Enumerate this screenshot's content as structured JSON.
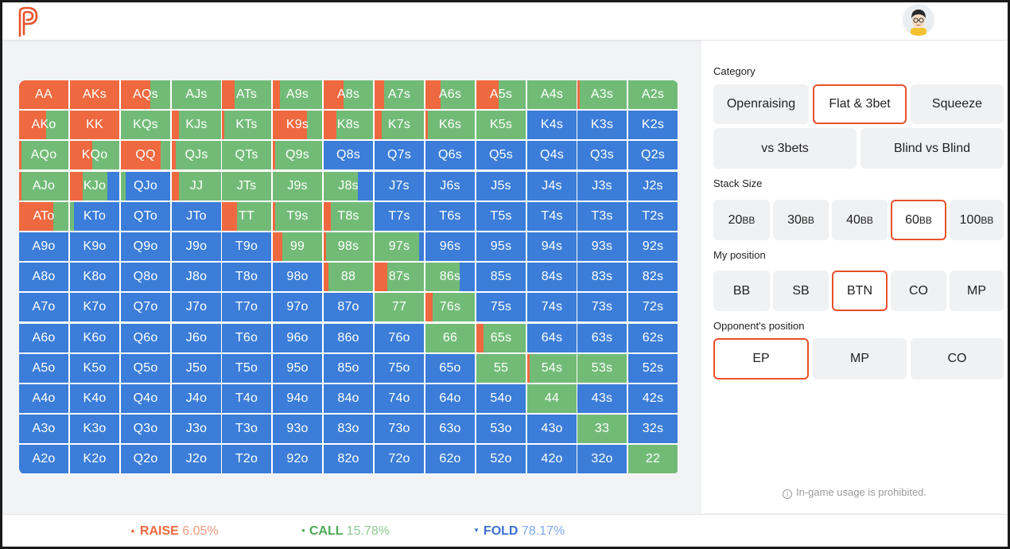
{
  "colors": {
    "raise": "#ef6940",
    "call": "#72bb77",
    "fold": "#3b7dd8",
    "accent": "#e8512a"
  },
  "header": {
    "logo_icon": "p-logo-icon",
    "avatar_icon": "user-avatar-icon"
  },
  "range_grid": {
    "rows": [
      [
        {
          "label": "AA",
          "raise": 100,
          "call": 0
        },
        {
          "label": "AKs",
          "raise": 100,
          "call": 0
        },
        {
          "label": "AQs",
          "raise": 60,
          "call": 40
        },
        {
          "label": "AJs",
          "raise": 0,
          "call": 100
        },
        {
          "label": "ATs",
          "raise": 25,
          "call": 75
        },
        {
          "label": "A9s",
          "raise": 15,
          "call": 85
        },
        {
          "label": "A8s",
          "raise": 40,
          "call": 60
        },
        {
          "label": "A7s",
          "raise": 20,
          "call": 80
        },
        {
          "label": "A6s",
          "raise": 30,
          "call": 70
        },
        {
          "label": "A5s",
          "raise": 45,
          "call": 55
        },
        {
          "label": "A4s",
          "raise": 0,
          "call": 100
        },
        {
          "label": "A3s",
          "raise": 5,
          "call": 95
        },
        {
          "label": "A2s",
          "raise": 0,
          "call": 100
        }
      ],
      [
        {
          "label": "AKo",
          "raise": 55,
          "call": 45
        },
        {
          "label": "KK",
          "raise": 100,
          "call": 0
        },
        {
          "label": "KQs",
          "raise": 0,
          "call": 100
        },
        {
          "label": "KJs",
          "raise": 15,
          "call": 85
        },
        {
          "label": "KTs",
          "raise": 5,
          "call": 95
        },
        {
          "label": "K9s",
          "raise": 70,
          "call": 30
        },
        {
          "label": "K8s",
          "raise": 25,
          "call": 75
        },
        {
          "label": "K7s",
          "raise": 15,
          "call": 85
        },
        {
          "label": "K6s",
          "raise": 5,
          "call": 95
        },
        {
          "label": "K5s",
          "raise": 0,
          "call": 100
        },
        {
          "label": "K4s",
          "raise": 0,
          "call": 0
        },
        {
          "label": "K3s",
          "raise": 0,
          "call": 0
        },
        {
          "label": "K2s",
          "raise": 0,
          "call": 0
        }
      ],
      [
        {
          "label": "AQo",
          "raise": 5,
          "call": 95
        },
        {
          "label": "KQo",
          "raise": 45,
          "call": 55
        },
        {
          "label": "QQ",
          "raise": 80,
          "call": 20
        },
        {
          "label": "QJs",
          "raise": 8,
          "call": 92
        },
        {
          "label": "QTs",
          "raise": 0,
          "call": 100
        },
        {
          "label": "Q9s",
          "raise": 5,
          "call": 95
        },
        {
          "label": "Q8s",
          "raise": 0,
          "call": 0
        },
        {
          "label": "Q7s",
          "raise": 0,
          "call": 0
        },
        {
          "label": "Q6s",
          "raise": 0,
          "call": 0
        },
        {
          "label": "Q5s",
          "raise": 0,
          "call": 0
        },
        {
          "label": "Q4s",
          "raise": 0,
          "call": 0
        },
        {
          "label": "Q3s",
          "raise": 0,
          "call": 0
        },
        {
          "label": "Q2s",
          "raise": 0,
          "call": 0
        }
      ],
      [
        {
          "label": "AJo",
          "raise": 5,
          "call": 95
        },
        {
          "label": "KJo",
          "raise": 25,
          "call": 50
        },
        {
          "label": "QJo",
          "raise": 0,
          "call": 10
        },
        {
          "label": "JJ",
          "raise": 15,
          "call": 85
        },
        {
          "label": "JTs",
          "raise": 0,
          "call": 100
        },
        {
          "label": "J9s",
          "raise": 0,
          "call": 100
        },
        {
          "label": "J8s",
          "raise": 0,
          "call": 70
        },
        {
          "label": "J7s",
          "raise": 0,
          "call": 0
        },
        {
          "label": "J6s",
          "raise": 0,
          "call": 0
        },
        {
          "label": "J5s",
          "raise": 0,
          "call": 0
        },
        {
          "label": "J4s",
          "raise": 0,
          "call": 0
        },
        {
          "label": "J3s",
          "raise": 0,
          "call": 0
        },
        {
          "label": "J2s",
          "raise": 0,
          "call": 0
        }
      ],
      [
        {
          "label": "ATo",
          "raise": 70,
          "call": 30
        },
        {
          "label": "KTo",
          "raise": 0,
          "call": 8
        },
        {
          "label": "QTo",
          "raise": 0,
          "call": 0
        },
        {
          "label": "JTo",
          "raise": 0,
          "call": 0
        },
        {
          "label": "TT",
          "raise": 30,
          "call": 70
        },
        {
          "label": "T9s",
          "raise": 5,
          "call": 95
        },
        {
          "label": "T8s",
          "raise": 15,
          "call": 85
        },
        {
          "label": "T7s",
          "raise": 0,
          "call": 0
        },
        {
          "label": "T6s",
          "raise": 0,
          "call": 0
        },
        {
          "label": "T5s",
          "raise": 0,
          "call": 0
        },
        {
          "label": "T4s",
          "raise": 0,
          "call": 0
        },
        {
          "label": "T3s",
          "raise": 0,
          "call": 0
        },
        {
          "label": "T2s",
          "raise": 0,
          "call": 0
        }
      ],
      [
        {
          "label": "A9o",
          "raise": 0,
          "call": 0
        },
        {
          "label": "K9o",
          "raise": 0,
          "call": 0
        },
        {
          "label": "Q9o",
          "raise": 0,
          "call": 0
        },
        {
          "label": "J9o",
          "raise": 0,
          "call": 0
        },
        {
          "label": "T9o",
          "raise": 0,
          "call": 0
        },
        {
          "label": "99",
          "raise": 20,
          "call": 80
        },
        {
          "label": "98s",
          "raise": 5,
          "call": 95
        },
        {
          "label": "97s",
          "raise": 0,
          "call": 90
        },
        {
          "label": "96s",
          "raise": 0,
          "call": 0
        },
        {
          "label": "95s",
          "raise": 0,
          "call": 0
        },
        {
          "label": "94s",
          "raise": 0,
          "call": 0
        },
        {
          "label": "93s",
          "raise": 0,
          "call": 0
        },
        {
          "label": "92s",
          "raise": 0,
          "call": 0
        }
      ],
      [
        {
          "label": "A8o",
          "raise": 0,
          "call": 0
        },
        {
          "label": "K8o",
          "raise": 0,
          "call": 0
        },
        {
          "label": "Q8o",
          "raise": 0,
          "call": 0
        },
        {
          "label": "J8o",
          "raise": 0,
          "call": 0
        },
        {
          "label": "T8o",
          "raise": 0,
          "call": 0
        },
        {
          "label": "98o",
          "raise": 0,
          "call": 0
        },
        {
          "label": "88",
          "raise": 10,
          "call": 90
        },
        {
          "label": "87s",
          "raise": 25,
          "call": 75
        },
        {
          "label": "86s",
          "raise": 0,
          "call": 70
        },
        {
          "label": "85s",
          "raise": 0,
          "call": 0
        },
        {
          "label": "84s",
          "raise": 0,
          "call": 0
        },
        {
          "label": "83s",
          "raise": 0,
          "call": 0
        },
        {
          "label": "82s",
          "raise": 0,
          "call": 0
        }
      ],
      [
        {
          "label": "A7o",
          "raise": 0,
          "call": 0
        },
        {
          "label": "K7o",
          "raise": 0,
          "call": 0
        },
        {
          "label": "Q7o",
          "raise": 0,
          "call": 0
        },
        {
          "label": "J7o",
          "raise": 0,
          "call": 0
        },
        {
          "label": "T7o",
          "raise": 0,
          "call": 0
        },
        {
          "label": "97o",
          "raise": 0,
          "call": 0
        },
        {
          "label": "87o",
          "raise": 0,
          "call": 0
        },
        {
          "label": "77",
          "raise": 0,
          "call": 100
        },
        {
          "label": "76s",
          "raise": 15,
          "call": 85
        },
        {
          "label": "75s",
          "raise": 0,
          "call": 0
        },
        {
          "label": "74s",
          "raise": 0,
          "call": 0
        },
        {
          "label": "73s",
          "raise": 0,
          "call": 0
        },
        {
          "label": "72s",
          "raise": 0,
          "call": 0
        }
      ],
      [
        {
          "label": "A6o",
          "raise": 0,
          "call": 0
        },
        {
          "label": "K6o",
          "raise": 0,
          "call": 0
        },
        {
          "label": "Q6o",
          "raise": 0,
          "call": 0
        },
        {
          "label": "J6o",
          "raise": 0,
          "call": 0
        },
        {
          "label": "T6o",
          "raise": 0,
          "call": 0
        },
        {
          "label": "96o",
          "raise": 0,
          "call": 0
        },
        {
          "label": "86o",
          "raise": 0,
          "call": 0
        },
        {
          "label": "76o",
          "raise": 0,
          "call": 0
        },
        {
          "label": "66",
          "raise": 0,
          "call": 100
        },
        {
          "label": "65s",
          "raise": 15,
          "call": 85
        },
        {
          "label": "64s",
          "raise": 0,
          "call": 0
        },
        {
          "label": "63s",
          "raise": 0,
          "call": 0
        },
        {
          "label": "62s",
          "raise": 0,
          "call": 0
        }
      ],
      [
        {
          "label": "A5o",
          "raise": 0,
          "call": 0
        },
        {
          "label": "K5o",
          "raise": 0,
          "call": 0
        },
        {
          "label": "Q5o",
          "raise": 0,
          "call": 0
        },
        {
          "label": "J5o",
          "raise": 0,
          "call": 0
        },
        {
          "label": "T5o",
          "raise": 0,
          "call": 0
        },
        {
          "label": "95o",
          "raise": 0,
          "call": 0
        },
        {
          "label": "85o",
          "raise": 0,
          "call": 0
        },
        {
          "label": "75o",
          "raise": 0,
          "call": 0
        },
        {
          "label": "65o",
          "raise": 0,
          "call": 0
        },
        {
          "label": "55",
          "raise": 0,
          "call": 100
        },
        {
          "label": "54s",
          "raise": 5,
          "call": 95
        },
        {
          "label": "53s",
          "raise": 0,
          "call": 100
        },
        {
          "label": "52s",
          "raise": 0,
          "call": 0
        }
      ],
      [
        {
          "label": "A4o",
          "raise": 0,
          "call": 0
        },
        {
          "label": "K4o",
          "raise": 0,
          "call": 0
        },
        {
          "label": "Q4o",
          "raise": 0,
          "call": 0
        },
        {
          "label": "J4o",
          "raise": 0,
          "call": 0
        },
        {
          "label": "T4o",
          "raise": 0,
          "call": 0
        },
        {
          "label": "94o",
          "raise": 0,
          "call": 0
        },
        {
          "label": "84o",
          "raise": 0,
          "call": 0
        },
        {
          "label": "74o",
          "raise": 0,
          "call": 0
        },
        {
          "label": "64o",
          "raise": 0,
          "call": 0
        },
        {
          "label": "54o",
          "raise": 0,
          "call": 0
        },
        {
          "label": "44",
          "raise": 0,
          "call": 100
        },
        {
          "label": "43s",
          "raise": 0,
          "call": 0
        },
        {
          "label": "42s",
          "raise": 0,
          "call": 0
        }
      ],
      [
        {
          "label": "A3o",
          "raise": 0,
          "call": 0
        },
        {
          "label": "K3o",
          "raise": 0,
          "call": 0
        },
        {
          "label": "Q3o",
          "raise": 0,
          "call": 0
        },
        {
          "label": "J3o",
          "raise": 0,
          "call": 0
        },
        {
          "label": "T3o",
          "raise": 0,
          "call": 0
        },
        {
          "label": "93o",
          "raise": 0,
          "call": 0
        },
        {
          "label": "83o",
          "raise": 0,
          "call": 0
        },
        {
          "label": "73o",
          "raise": 0,
          "call": 0
        },
        {
          "label": "63o",
          "raise": 0,
          "call": 0
        },
        {
          "label": "53o",
          "raise": 0,
          "call": 0
        },
        {
          "label": "43o",
          "raise": 0,
          "call": 0
        },
        {
          "label": "33",
          "raise": 0,
          "call": 100
        },
        {
          "label": "32s",
          "raise": 0,
          "call": 0
        }
      ],
      [
        {
          "label": "A2o",
          "raise": 0,
          "call": 0
        },
        {
          "label": "K2o",
          "raise": 0,
          "call": 0
        },
        {
          "label": "Q2o",
          "raise": 0,
          "call": 0
        },
        {
          "label": "J2o",
          "raise": 0,
          "call": 0
        },
        {
          "label": "T2o",
          "raise": 0,
          "call": 0
        },
        {
          "label": "92o",
          "raise": 0,
          "call": 0
        },
        {
          "label": "82o",
          "raise": 0,
          "call": 0
        },
        {
          "label": "72o",
          "raise": 0,
          "call": 0
        },
        {
          "label": "62o",
          "raise": 0,
          "call": 0
        },
        {
          "label": "52o",
          "raise": 0,
          "call": 0
        },
        {
          "label": "42o",
          "raise": 0,
          "call": 0
        },
        {
          "label": "32o",
          "raise": 0,
          "call": 0
        },
        {
          "label": "22",
          "raise": 0,
          "call": 100
        }
      ]
    ]
  },
  "sidebar": {
    "category_title": "Category",
    "category": {
      "openraising": "Openraising",
      "flat_3bet": "Flat & 3bet",
      "squeeze": "Squeeze",
      "vs_3bets": "vs 3bets",
      "blind_vs_blind": "Blind vs Blind",
      "selected": "Flat & 3bet"
    },
    "stack_title": "Stack Size",
    "stacks": [
      {
        "num": "20",
        "unit": "BB"
      },
      {
        "num": "30",
        "unit": "BB"
      },
      {
        "num": "40",
        "unit": "BB"
      },
      {
        "num": "60",
        "unit": "BB"
      },
      {
        "num": "100",
        "unit": "BB"
      }
    ],
    "stack_selected": "60BB",
    "position_title": "My position",
    "positions": [
      "BB",
      "SB",
      "BTN",
      "CO",
      "MP"
    ],
    "position_selected": "BTN",
    "opponent_title": "Opponent's position",
    "opponents": [
      "EP",
      "MP",
      "CO"
    ],
    "opponent_selected": "EP",
    "notice": "In-game usage is prohibited.",
    "notice_icon": "info-icon"
  },
  "stats": {
    "raise": {
      "label": "RAISE",
      "value": "6.05%",
      "marker": "▲"
    },
    "call": {
      "label": "CALL",
      "value": "15.78%",
      "marker": "●"
    },
    "fold": {
      "label": "FOLD",
      "value": "78.17%",
      "marker": "▼"
    }
  }
}
